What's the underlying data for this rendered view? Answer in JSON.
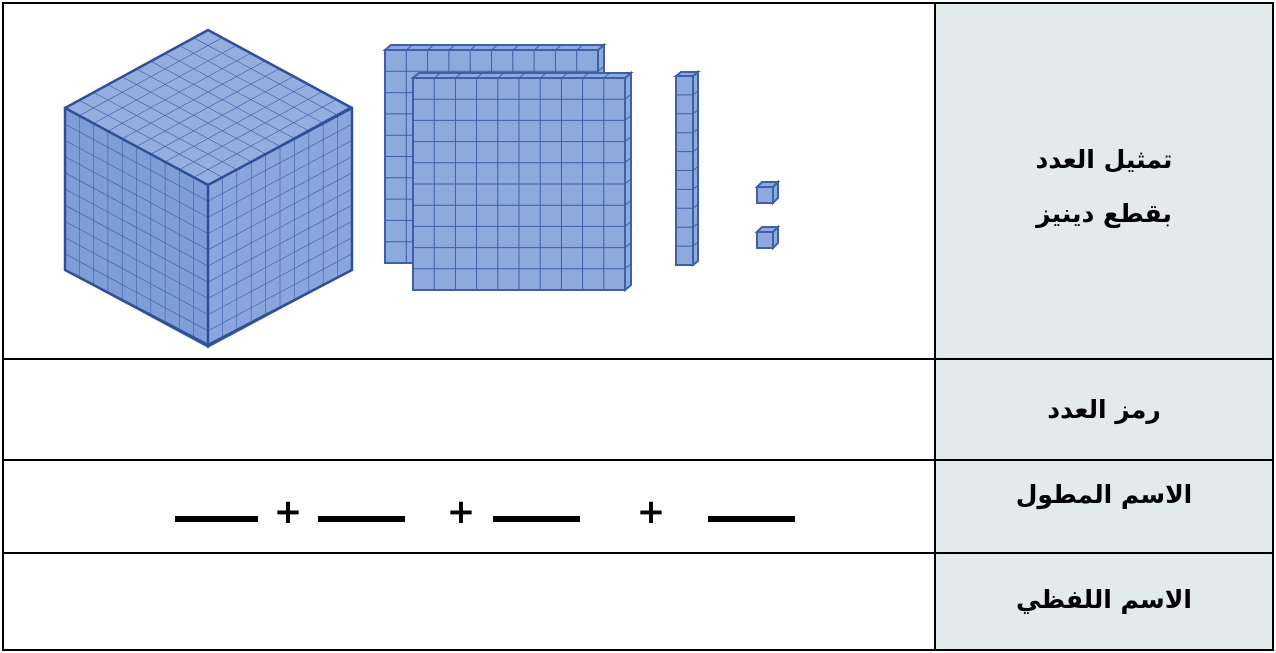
{
  "rows": [
    {
      "label_lines": [
        "تمثيل العدد",
        "بقطع دينيز"
      ]
    },
    {
      "label": "رمز العدد"
    },
    {
      "label": "الاسم المطول",
      "plus_signs": [
        "+",
        "+",
        "+"
      ]
    },
    {
      "label": "الاسم اللفظي"
    }
  ]
}
